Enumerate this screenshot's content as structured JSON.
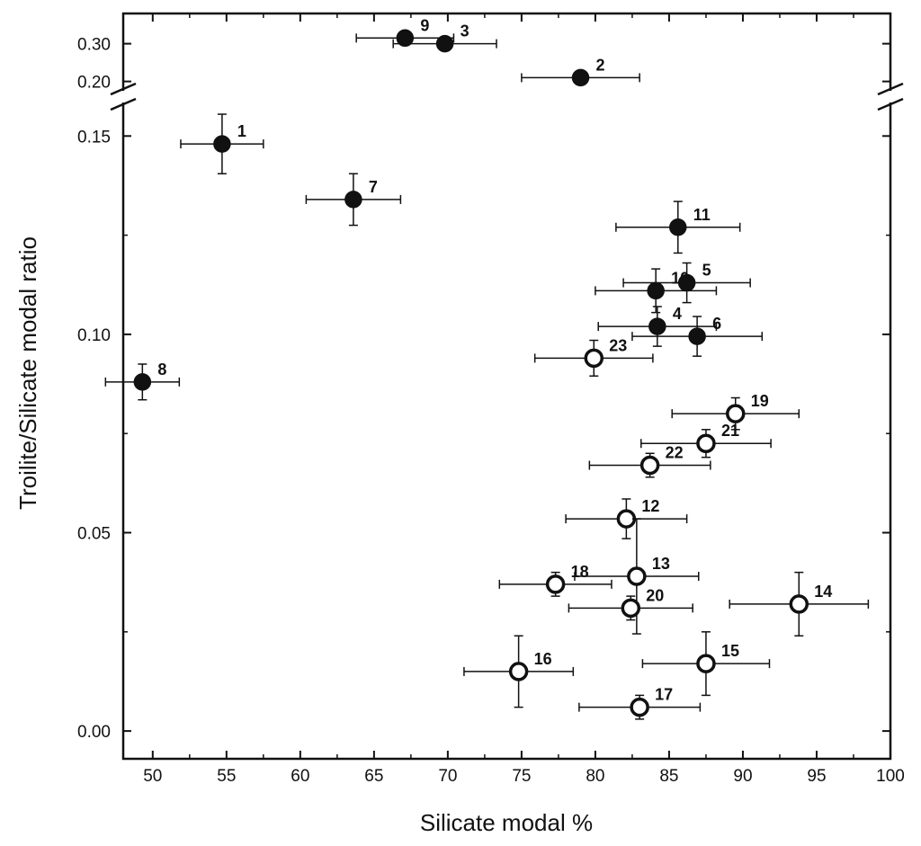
{
  "chart_data": {
    "type": "scatter",
    "title": "",
    "xlabel": "Silicate modal %",
    "ylabel": "Troilite/Silicate modal ratio",
    "xlim": [
      48,
      100
    ],
    "ylim_lower": [
      -0.007,
      0.158
    ],
    "ylim_upper": [
      0.18,
      0.38
    ],
    "y_axis_break": true,
    "x_ticks": [
      50,
      55,
      60,
      65,
      70,
      75,
      80,
      85,
      90,
      95,
      100
    ],
    "x_tick_labels": [
      "50",
      "55",
      "60",
      "65",
      "70",
      "75",
      "80",
      "85",
      "90",
      "95",
      "100"
    ],
    "y_ticks_lower": [
      0.0,
      0.05,
      0.1,
      0.15
    ],
    "y_tick_labels_lower": [
      "0.00",
      "0.05",
      "0.10",
      "0.15"
    ],
    "y_ticks_upper": [
      0.2,
      0.3
    ],
    "y_tick_labels_upper": [
      "0.20",
      "0.30"
    ],
    "colors": {
      "axis": "#111111",
      "marker_edge": "#111111",
      "marker_fill_filled": "#111111",
      "marker_fill_open": "#ffffff"
    },
    "points": [
      {
        "label": "1",
        "x": 54.7,
        "y": 0.148,
        "xerr": 2.8,
        "yerr": 0.0075,
        "filled": true
      },
      {
        "label": "2",
        "x": 79.0,
        "y": 0.21,
        "xerr": 4.0,
        "yerr": 0.0,
        "filled": true
      },
      {
        "label": "3",
        "x": 69.8,
        "y": 0.3,
        "xerr": 3.5,
        "yerr": 0.0,
        "filled": true
      },
      {
        "label": "4",
        "x": 84.2,
        "y": 0.102,
        "xerr": 4.0,
        "yerr": 0.005,
        "filled": true
      },
      {
        "label": "5",
        "x": 86.2,
        "y": 0.113,
        "xerr": 4.3,
        "yerr": 0.005,
        "filled": true
      },
      {
        "label": "6",
        "x": 86.9,
        "y": 0.0995,
        "xerr": 4.4,
        "yerr": 0.005,
        "filled": true
      },
      {
        "label": "7",
        "x": 63.6,
        "y": 0.134,
        "xerr": 3.2,
        "yerr": 0.0065,
        "filled": true
      },
      {
        "label": "8",
        "x": 49.3,
        "y": 0.088,
        "xerr": 2.5,
        "yerr": 0.0045,
        "filled": true
      },
      {
        "label": "9",
        "x": 67.1,
        "y": 0.315,
        "xerr": 3.3,
        "yerr": 0.0,
        "filled": true
      },
      {
        "label": "10",
        "x": 84.1,
        "y": 0.111,
        "xerr": 4.1,
        "yerr": 0.0055,
        "filled": true
      },
      {
        "label": "11",
        "x": 85.6,
        "y": 0.127,
        "xerr": 4.2,
        "yerr": 0.0065,
        "filled": true
      },
      {
        "label": "12",
        "x": 82.1,
        "y": 0.0535,
        "xerr": 4.1,
        "yerr": 0.005,
        "filled": false
      },
      {
        "label": "13",
        "x": 82.8,
        "y": 0.039,
        "xerr": 4.2,
        "yerr": 0.0145,
        "filled": false
      },
      {
        "label": "14",
        "x": 93.8,
        "y": 0.032,
        "xerr": 4.7,
        "yerr": 0.008,
        "filled": false
      },
      {
        "label": "15",
        "x": 87.5,
        "y": 0.017,
        "xerr": 4.3,
        "yerr": 0.008,
        "filled": false
      },
      {
        "label": "16",
        "x": 74.8,
        "y": 0.015,
        "xerr": 3.7,
        "yerr": 0.009,
        "filled": false
      },
      {
        "label": "17",
        "x": 83.0,
        "y": 0.006,
        "xerr": 4.1,
        "yerr": 0.003,
        "filled": false
      },
      {
        "label": "18",
        "x": 77.3,
        "y": 0.037,
        "xerr": 3.8,
        "yerr": 0.003,
        "filled": false
      },
      {
        "label": "19",
        "x": 89.5,
        "y": 0.08,
        "xerr": 4.3,
        "yerr": 0.004,
        "filled": false
      },
      {
        "label": "20",
        "x": 82.4,
        "y": 0.031,
        "xerr": 4.2,
        "yerr": 0.003,
        "filled": false
      },
      {
        "label": "21",
        "x": 87.5,
        "y": 0.0725,
        "xerr": 4.4,
        "yerr": 0.0035,
        "filled": false
      },
      {
        "label": "22",
        "x": 83.7,
        "y": 0.067,
        "xerr": 4.1,
        "yerr": 0.003,
        "filled": false
      },
      {
        "label": "23",
        "x": 79.9,
        "y": 0.094,
        "xerr": 4.0,
        "yerr": 0.0045,
        "filled": false
      }
    ]
  }
}
